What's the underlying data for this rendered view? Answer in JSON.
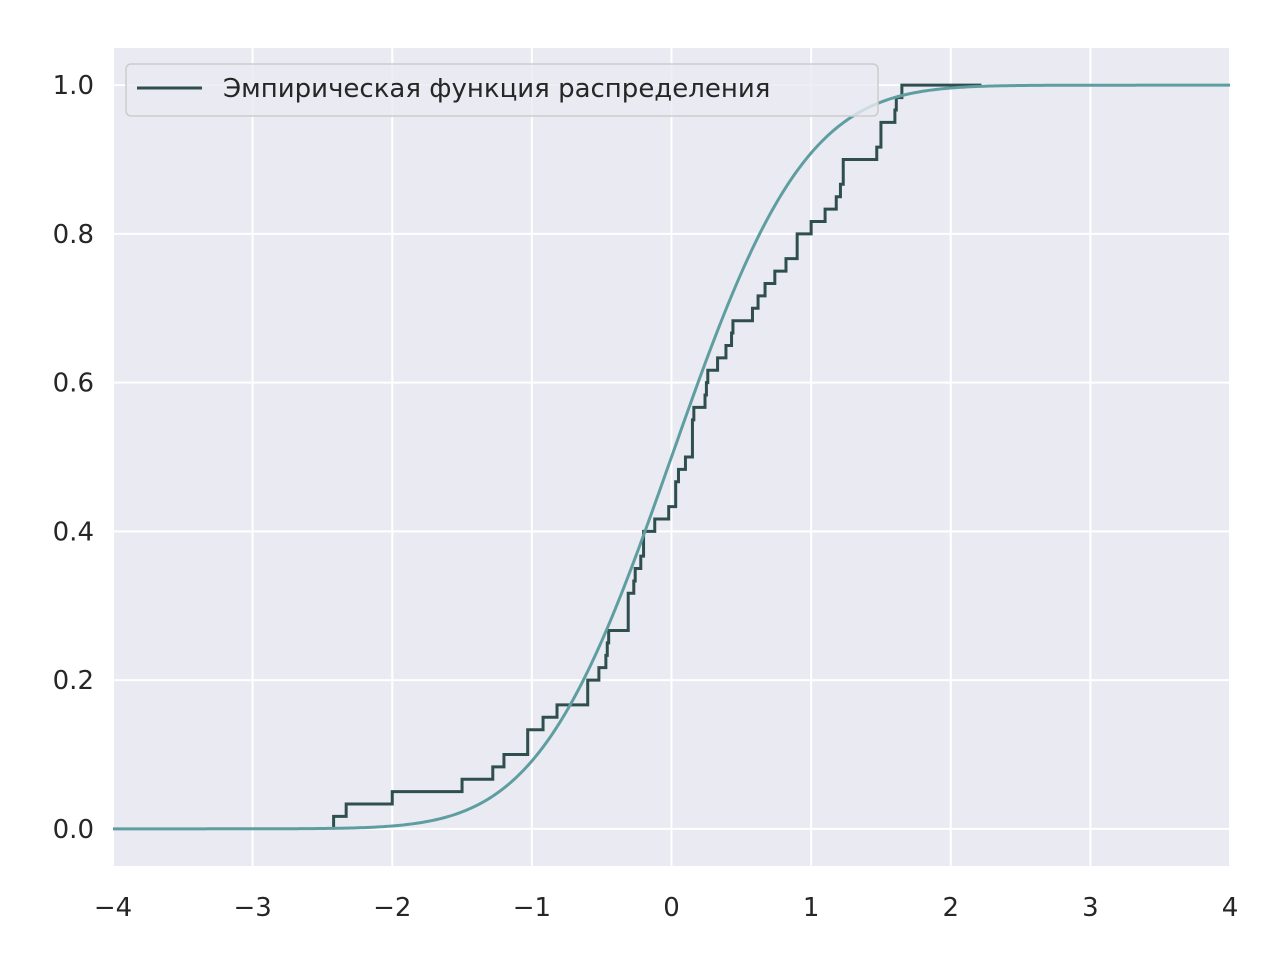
{
  "chart_data": {
    "type": "line",
    "title": "",
    "xlabel": "",
    "ylabel": "",
    "xlim": [
      -4,
      4
    ],
    "ylim": [
      -0.05,
      1.05
    ],
    "xticks": [
      -4,
      -3,
      -2,
      -1,
      0,
      1,
      2,
      3,
      4
    ],
    "xtick_labels": [
      "−4",
      "−3",
      "−2",
      "−1",
      "0",
      "1",
      "2",
      "3",
      "4"
    ],
    "yticks": [
      0.0,
      0.2,
      0.4,
      0.6,
      0.8,
      1.0
    ],
    "ytick_labels": [
      "0.0",
      "0.2",
      "0.4",
      "0.6",
      "0.8",
      "1.0"
    ],
    "grid": true,
    "legend_position": "top-left",
    "background": "#eaeaf2",
    "series": [
      {
        "name": "Эмпирическая функция распределения",
        "kind": "step",
        "color": "#2f4f4f",
        "x": [
          -2.42,
          -2.33,
          -2.0,
          -1.5,
          -1.28,
          -1.2,
          -1.03,
          -0.92,
          -0.82,
          -0.6,
          -0.52,
          -0.47,
          -0.46,
          -0.45,
          -0.31,
          -0.27,
          -0.26,
          -0.22,
          -0.2,
          -0.12,
          -0.02,
          0.03,
          0.05,
          0.1,
          0.15,
          0.16,
          0.24,
          0.25,
          0.26,
          0.33,
          0.39,
          0.43,
          0.44,
          0.58,
          0.62,
          0.67,
          0.74,
          0.82,
          0.9,
          1.0,
          1.1,
          1.18,
          1.21,
          1.23,
          1.47,
          1.5,
          1.6,
          1.61,
          1.65
        ],
        "y": [
          0.0167,
          0.0333,
          0.05,
          0.0667,
          0.0833,
          0.1,
          0.1333,
          0.15,
          0.1667,
          0.2,
          0.2167,
          0.2333,
          0.25,
          0.2667,
          0.3167,
          0.3333,
          0.35,
          0.3667,
          0.4,
          0.4167,
          0.4333,
          0.4667,
          0.4833,
          0.5,
          0.55,
          0.5667,
          0.5833,
          0.6,
          0.6167,
          0.6333,
          0.65,
          0.6667,
          0.6833,
          0.7,
          0.7167,
          0.7333,
          0.75,
          0.7667,
          0.8,
          0.8167,
          0.8333,
          0.85,
          0.8667,
          0.9,
          0.9167,
          0.95,
          0.9667,
          0.9833,
          1.0
        ],
        "x_end": 2.22
      },
      {
        "name": "",
        "kind": "smooth",
        "color": "#5f9ea0",
        "function": "normal_cdf",
        "mean": 0.0,
        "std": 0.75,
        "x_range": [
          -4,
          4
        ]
      }
    ]
  }
}
